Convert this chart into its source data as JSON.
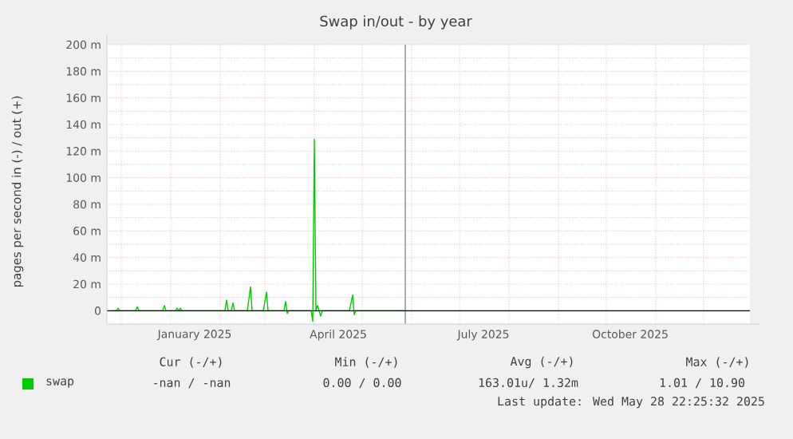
{
  "chart_data": {
    "type": "line",
    "title": "Swap in/out - by year",
    "ylabel": "pages per second in (-) / out (+)",
    "series": [
      {
        "name": "swap",
        "color": "#00cc00",
        "x": [
          "2024-11-25",
          "2024-11-28",
          "2024-11-29",
          "2024-11-30",
          "2024-12-10",
          "2024-12-11",
          "2024-12-12",
          "2024-12-27",
          "2024-12-28",
          "2024-12-29",
          "2025-01-04",
          "2025-01-05",
          "2025-01-06",
          "2025-01-07",
          "2025-01-08",
          "2025-02-04",
          "2025-02-05",
          "2025-02-06",
          "2025-02-08",
          "2025-02-09",
          "2025-02-10",
          "2025-02-18",
          "2025-02-20",
          "2025-02-21",
          "2025-02-28",
          "2025-03-02",
          "2025-03-03",
          "2025-03-13",
          "2025-03-14",
          "2025-03-15",
          "2025-03-16",
          "2025-03-30",
          "2025-03-31",
          "2025-04-01",
          "2025-04-02",
          "2025-04-03",
          "2025-04-05",
          "2025-04-06",
          "2025-04-23",
          "2025-04-25",
          "2025-04-26",
          "2025-04-27",
          "2025-05-28"
        ],
        "values": [
          0,
          0,
          2,
          0,
          0,
          3,
          0,
          0,
          4,
          0,
          0,
          2,
          0,
          2,
          0,
          0,
          8,
          0,
          0,
          6,
          0,
          0,
          18,
          0,
          0,
          14,
          0,
          0,
          7,
          -2,
          0,
          0,
          -8,
          129,
          0,
          4,
          -4,
          0,
          0,
          12,
          -3,
          0,
          0
        ]
      }
    ],
    "xlim": [
      "2024-11-22",
      "2025-12-30"
    ],
    "xticks": [
      {
        "value": "2024-12-01",
        "label": null
      },
      {
        "value": "2025-01-01",
        "label": null
      },
      {
        "value": "2025-01-16",
        "label": "January 2025"
      },
      {
        "value": "2025-02-01",
        "label": null
      },
      {
        "value": "2025-03-01",
        "label": null
      },
      {
        "value": "2025-04-01",
        "label": null
      },
      {
        "value": "2025-04-16",
        "label": "April 2025"
      },
      {
        "value": "2025-05-01",
        "label": null
      },
      {
        "value": "2025-06-01",
        "label": null
      },
      {
        "value": "2025-07-01",
        "label": null
      },
      {
        "value": "2025-07-16",
        "label": "July 2025"
      },
      {
        "value": "2025-08-01",
        "label": null
      },
      {
        "value": "2025-09-01",
        "label": null
      },
      {
        "value": "2025-10-01",
        "label": null
      },
      {
        "value": "2025-10-16",
        "label": "October 2025"
      },
      {
        "value": "2025-11-01",
        "label": null
      },
      {
        "value": "2025-12-01",
        "label": null
      }
    ],
    "ylim": [
      -10,
      200
    ],
    "yticks": [
      0,
      {
        "value": 20,
        "label": "20 m"
      },
      {
        "value": 40,
        "label": "40 m"
      },
      {
        "value": 60,
        "label": "60 m"
      },
      {
        "value": 80,
        "label": "80 m"
      },
      {
        "value": 100,
        "label": "100 m"
      },
      {
        "value": 120,
        "label": "120 m"
      },
      {
        "value": 140,
        "label": "140 m"
      },
      {
        "value": 160,
        "label": "160 m"
      },
      {
        "value": 180,
        "label": "180 m"
      },
      {
        "value": 200,
        "label": "200 m"
      }
    ],
    "ref_lines": [
      {
        "axis": "y",
        "value": 0,
        "color": "#000000"
      },
      {
        "axis": "x",
        "value": "2025-05-28",
        "color": "#999999"
      }
    ],
    "grid": true,
    "legend": "bottom",
    "annotations": [
      "Cur (-/+)",
      "Min (-/+)",
      "Avg (-/+)",
      "Max (-/+)",
      "-nan / -nan",
      "0.00 / 0.00",
      "163.01u/ 1.32m",
      "1.01 / 10.90",
      "Last update: Wed May 28 22:25:32 2025"
    ]
  }
}
